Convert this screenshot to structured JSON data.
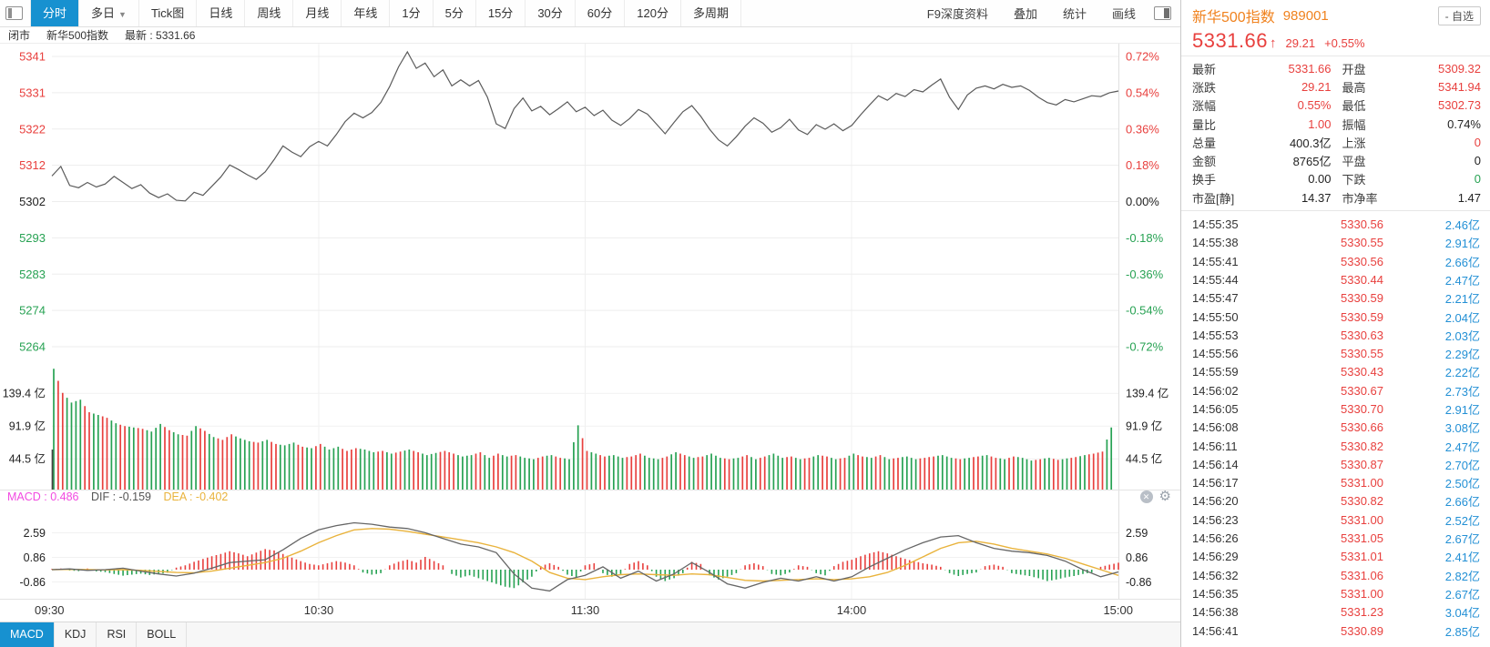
{
  "colors": {
    "red": "#e8403e",
    "green": "#27a253",
    "blue": "#2390d5",
    "orange": "#f0821e",
    "accent_blue": "#1791d0",
    "macd_pink": "#f24ae1",
    "dea_yellow": "#e9b33c",
    "price_line": "#5a5a5a",
    "dif_line": "#666666"
  },
  "toolbar": {
    "tabs": [
      {
        "label": "分时",
        "active": true
      },
      {
        "label": "多日",
        "caret": true
      },
      {
        "label": "Tick图"
      },
      {
        "label": "日线"
      },
      {
        "label": "周线"
      },
      {
        "label": "月线"
      },
      {
        "label": "年线"
      },
      {
        "label": "1分"
      },
      {
        "label": "5分"
      },
      {
        "label": "15分"
      },
      {
        "label": "30分"
      },
      {
        "label": "60分"
      },
      {
        "label": "120分"
      },
      {
        "label": "多周期"
      }
    ],
    "right_items": [
      "F9深度资料",
      "叠加",
      "统计",
      "画线"
    ]
  },
  "statusbar": {
    "market_state": "闭市",
    "name": "新华500指数",
    "latest": "最新 : 5331.66"
  },
  "macd_header": {
    "macd_label": "MACD : 0.486",
    "dif_label": "DIF : -0.159",
    "dea_label": "DEA : -0.402"
  },
  "indicator_tabs": {
    "items": [
      "MACD",
      "KDJ",
      "RSI",
      "BOLL"
    ],
    "active": "MACD"
  },
  "quote": {
    "name": "新华500指数",
    "code": "989001",
    "price": "5331.66",
    "arrow": "↑",
    "change": "29.21",
    "change_pct": "+0.55%",
    "watchlist_btn": "- 自选",
    "fields": [
      {
        "label": "最新",
        "value": "5331.66",
        "color": "r"
      },
      {
        "label": "开盘",
        "value": "5309.32",
        "color": "r"
      },
      {
        "label": "涨跌",
        "value": "29.21",
        "color": "r"
      },
      {
        "label": "最高",
        "value": "5341.94",
        "color": "r"
      },
      {
        "label": "涨幅",
        "value": "0.55%",
        "color": "r"
      },
      {
        "label": "最低",
        "value": "5302.73",
        "color": "r"
      },
      {
        "label": "量比",
        "value": "1.00",
        "color": "r"
      },
      {
        "label": "振幅",
        "value": "0.74%",
        "color": "k"
      },
      {
        "label": "总量",
        "value": "400.3亿",
        "color": "k"
      },
      {
        "label": "上涨",
        "value": "0",
        "color": "r"
      },
      {
        "label": "金额",
        "value": "8765亿",
        "color": "k"
      },
      {
        "label": "平盘",
        "value": "0",
        "color": "k"
      },
      {
        "label": "换手",
        "value": "0.00",
        "color": "k"
      },
      {
        "label": "下跌",
        "value": "0",
        "color": "g"
      },
      {
        "label": "市盈[静]",
        "value": "14.37",
        "color": "k"
      },
      {
        "label": "市净率",
        "value": "1.47",
        "color": "k"
      }
    ]
  },
  "ticks": [
    {
      "t": "14:55:35",
      "p": "5330.56",
      "v": "2.46亿"
    },
    {
      "t": "14:55:38",
      "p": "5330.55",
      "v": "2.91亿"
    },
    {
      "t": "14:55:41",
      "p": "5330.56",
      "v": "2.66亿"
    },
    {
      "t": "14:55:44",
      "p": "5330.44",
      "v": "2.47亿"
    },
    {
      "t": "14:55:47",
      "p": "5330.59",
      "v": "2.21亿"
    },
    {
      "t": "14:55:50",
      "p": "5330.59",
      "v": "2.04亿"
    },
    {
      "t": "14:55:53",
      "p": "5330.63",
      "v": "2.03亿"
    },
    {
      "t": "14:55:56",
      "p": "5330.55",
      "v": "2.29亿"
    },
    {
      "t": "14:55:59",
      "p": "5330.43",
      "v": "2.22亿"
    },
    {
      "t": "14:56:02",
      "p": "5330.67",
      "v": "2.73亿"
    },
    {
      "t": "14:56:05",
      "p": "5330.70",
      "v": "2.91亿"
    },
    {
      "t": "14:56:08",
      "p": "5330.66",
      "v": "3.08亿"
    },
    {
      "t": "14:56:11",
      "p": "5330.82",
      "v": "2.47亿"
    },
    {
      "t": "14:56:14",
      "p": "5330.87",
      "v": "2.70亿"
    },
    {
      "t": "14:56:17",
      "p": "5331.00",
      "v": "2.50亿"
    },
    {
      "t": "14:56:20",
      "p": "5330.82",
      "v": "2.66亿"
    },
    {
      "t": "14:56:23",
      "p": "5331.00",
      "v": "2.52亿"
    },
    {
      "t": "14:56:26",
      "p": "5331.05",
      "v": "2.67亿"
    },
    {
      "t": "14:56:29",
      "p": "5331.01",
      "v": "2.41亿"
    },
    {
      "t": "14:56:32",
      "p": "5331.06",
      "v": "2.82亿"
    },
    {
      "t": "14:56:35",
      "p": "5331.00",
      "v": "2.67亿"
    },
    {
      "t": "14:56:38",
      "p": "5331.23",
      "v": "3.04亿"
    },
    {
      "t": "14:56:41",
      "p": "5330.89",
      "v": "2.85亿"
    }
  ],
  "chart_data": {
    "type": "line+bar+macd",
    "x_labels": [
      "09:30",
      "10:30",
      "11:30",
      "14:00",
      "15:00"
    ],
    "price_pane": {
      "y_labels_left": [
        "5341",
        "5331",
        "5322",
        "5312",
        "5302",
        "5293",
        "5283",
        "5274",
        "5264"
      ],
      "y_labels_right": [
        "0.72%",
        "0.54%",
        "0.36%",
        "0.18%",
        "0.00%",
        "-0.18%",
        "-0.36%",
        "-0.54%",
        "-0.72%"
      ],
      "prev_close": 5302.45,
      "minutes_step": 2,
      "prices": [
        5309.3,
        5311.8,
        5306.8,
        5306.2,
        5307.6,
        5306.4,
        5307.2,
        5309.2,
        5307.6,
        5306.0,
        5307.0,
        5304.8,
        5303.6,
        5304.6,
        5302.9,
        5302.73,
        5305.0,
        5304.2,
        5306.6,
        5309.0,
        5312.2,
        5311.0,
        5309.6,
        5308.4,
        5310.4,
        5313.6,
        5317.2,
        5315.6,
        5314.4,
        5317.0,
        5318.4,
        5317.2,
        5320.2,
        5323.6,
        5325.8,
        5324.6,
        5326.0,
        5328.6,
        5332.8,
        5338.0,
        5341.94,
        5337.6,
        5339.0,
        5335.4,
        5337.2,
        5333.0,
        5334.6,
        5333.0,
        5334.4,
        5330.0,
        5323.0,
        5321.8,
        5327.0,
        5329.8,
        5326.4,
        5327.6,
        5325.4,
        5327.0,
        5328.8,
        5326.2,
        5327.4,
        5325.2,
        5326.6,
        5324.0,
        5322.6,
        5324.4,
        5326.8,
        5325.6,
        5323.0,
        5320.4,
        5323.4,
        5326.2,
        5327.8,
        5325.0,
        5321.6,
        5318.8,
        5317.2,
        5319.6,
        5322.4,
        5324.6,
        5323.2,
        5320.8,
        5322.0,
        5324.2,
        5321.4,
        5320.2,
        5322.8,
        5321.6,
        5323.0,
        5321.2,
        5322.6,
        5325.4,
        5328.0,
        5330.4,
        5329.2,
        5331.0,
        5330.2,
        5332.0,
        5331.4,
        5333.2,
        5334.8,
        5330.0,
        5326.8,
        5330.6,
        5332.4,
        5333.0,
        5332.2,
        5333.4,
        5332.6,
        5333.0,
        5331.8,
        5330.0,
        5328.6,
        5328.0,
        5329.4,
        5328.8,
        5329.6,
        5330.4,
        5330.2,
        5331.2,
        5331.66
      ]
    },
    "volume_pane": {
      "unit": "亿",
      "y_labels": [
        "139.4 亿",
        "91.9 亿",
        "44.5 亿"
      ],
      "y_values": [
        139.4,
        91.9,
        44.5
      ],
      "values": [
        175,
        140,
        126,
        130,
        112,
        108,
        104,
        96,
        92,
        90,
        88,
        84,
        95,
        86,
        80,
        78,
        92,
        85,
        76,
        72,
        80,
        74,
        70,
        68,
        72,
        66,
        64,
        68,
        62,
        60,
        66,
        58,
        62,
        56,
        60,
        58,
        54,
        56,
        52,
        55,
        58,
        54,
        50,
        53,
        56,
        52,
        48,
        50,
        54,
        46,
        52,
        48,
        50,
        46,
        44,
        48,
        50,
        46,
        44,
        93,
        56,
        52,
        48,
        50,
        46,
        48,
        52,
        46,
        44,
        48,
        54,
        50,
        46,
        48,
        52,
        46,
        44,
        46,
        50,
        44,
        48,
        52,
        46,
        48,
        44,
        46,
        50,
        48,
        44,
        46,
        52,
        48,
        46,
        50,
        44,
        46,
        48,
        44,
        46,
        48,
        50,
        46,
        44,
        46,
        48,
        50,
        46,
        44,
        48,
        46,
        42,
        44,
        46,
        43,
        45,
        47,
        50,
        52,
        55,
        90
      ],
      "updown": "grggrgrgrgrggrgrgrgrrggrgrggrgrggrrggrgrgrggrrggrgrgrggrgrggrgrggrrggrgrgrggrgrgrggrgrgrgrgrgrgrggrrggrgrgrgrggrgrgrgrrg"
    },
    "macd_pane": {
      "y_labels": [
        "2.59",
        "0.86",
        "-0.86"
      ],
      "y_values": [
        2.59,
        0.86,
        -0.86
      ],
      "hist": [
        0.05,
        0.08,
        -0.06,
        -0.1,
        0.08,
        -0.12,
        -0.18,
        -0.3,
        -0.42,
        -0.35,
        -0.28,
        -0.38,
        -0.3,
        -0.22,
        0.15,
        0.3,
        0.55,
        0.75,
        0.95,
        1.1,
        1.3,
        1.15,
        0.95,
        1.2,
        1.45,
        1.35,
        1.1,
        0.85,
        0.6,
        0.4,
        0.3,
        0.45,
        0.6,
        0.5,
        0.3,
        -0.2,
        -0.35,
        -0.25,
        0.3,
        0.55,
        0.7,
        0.5,
        0.9,
        0.6,
        0.3,
        -0.3,
        -0.55,
        -0.4,
        -0.6,
        -0.8,
        -1.0,
        -1.2,
        -1.3,
        -0.9,
        -0.5,
        0.25,
        0.45,
        0.2,
        -0.35,
        -0.55,
        0.3,
        0.45,
        -0.25,
        -0.5,
        -0.3,
        0.4,
        0.6,
        0.3,
        -0.5,
        -0.8,
        -0.6,
        -0.25,
        0.55,
        0.4,
        -0.4,
        -0.7,
        -0.5,
        -0.25,
        0.3,
        0.45,
        0.25,
        -0.3,
        -0.4,
        -0.2,
        0.3,
        0.2,
        -0.25,
        -0.4,
        0.25,
        0.55,
        0.7,
        0.95,
        1.15,
        1.3,
        1.15,
        0.95,
        0.75,
        0.6,
        0.45,
        0.35,
        0.2,
        -0.25,
        -0.45,
        -0.3,
        -0.2,
        0.25,
        0.35,
        0.2,
        -0.25,
        -0.35,
        -0.45,
        -0.6,
        -0.8,
        -0.7,
        -0.55,
        -0.45,
        -0.3,
        -0.2,
        0.2,
        0.35,
        0.486
      ],
      "dif": [
        0.0,
        0.05,
        -0.05,
        0.0,
        0.1,
        -0.1,
        -0.3,
        -0.45,
        -0.25,
        0.1,
        0.5,
        0.6,
        0.7,
        1.4,
        2.2,
        2.8,
        3.1,
        3.3,
        3.2,
        3.0,
        2.9,
        2.6,
        2.2,
        1.8,
        1.6,
        1.2,
        -0.3,
        -1.3,
        -1.5,
        -0.7,
        -0.4,
        0.2,
        -0.6,
        -0.1,
        -0.8,
        -0.3,
        0.5,
        -0.2,
        -1.0,
        -1.3,
        -0.9,
        -0.6,
        -0.8,
        -0.5,
        -0.8,
        -0.5,
        0.2,
        0.8,
        1.4,
        1.9,
        2.3,
        2.4,
        1.9,
        1.5,
        1.3,
        1.2,
        1.0,
        0.6,
        0.0,
        -0.5,
        -0.159
      ],
      "dea": [
        0.0,
        0.02,
        0.0,
        -0.02,
        0.0,
        -0.05,
        -0.12,
        -0.2,
        -0.22,
        -0.1,
        0.1,
        0.3,
        0.5,
        0.8,
        1.3,
        1.9,
        2.4,
        2.8,
        2.9,
        2.85,
        2.7,
        2.5,
        2.3,
        2.1,
        1.9,
        1.6,
        1.2,
        0.6,
        -0.2,
        -0.6,
        -0.7,
        -0.5,
        -0.35,
        -0.3,
        -0.35,
        -0.4,
        -0.3,
        -0.35,
        -0.55,
        -0.75,
        -0.8,
        -0.75,
        -0.7,
        -0.65,
        -0.7,
        -0.65,
        -0.5,
        -0.2,
        0.3,
        0.9,
        1.5,
        1.9,
        2.0,
        1.8,
        1.5,
        1.3,
        1.1,
        0.8,
        0.4,
        0.0,
        -0.402
      ]
    }
  }
}
